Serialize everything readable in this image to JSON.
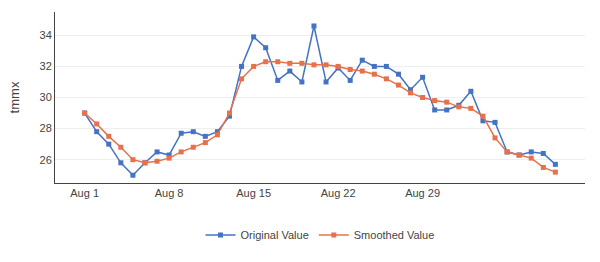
{
  "chart_data": {
    "type": "line",
    "categories": [
      "Aug 1",
      null,
      null,
      null,
      null,
      null,
      null,
      "Aug 8",
      null,
      null,
      null,
      null,
      null,
      null,
      "Aug 15",
      null,
      null,
      null,
      null,
      null,
      null,
      "Aug 22",
      null,
      null,
      null,
      null,
      null,
      null,
      "Aug 29",
      null,
      null,
      null,
      null,
      null,
      null,
      null,
      null,
      null,
      null,
      null
    ],
    "series": [
      {
        "name": "Original Value",
        "color": "#4472C4",
        "marker": "square",
        "line_style": "solid",
        "values": [
          29.0,
          27.8,
          27.0,
          25.8,
          25.0,
          25.8,
          26.5,
          26.3,
          27.7,
          27.8,
          27.5,
          27.8,
          28.8,
          32.0,
          33.9,
          33.2,
          31.1,
          31.7,
          31.0,
          34.6,
          31.0,
          31.9,
          31.1,
          32.4,
          32.0,
          32.0,
          31.5,
          30.5,
          31.3,
          29.2,
          29.2,
          29.5,
          30.4,
          28.5,
          28.4,
          26.5,
          26.3,
          26.5,
          26.4,
          25.7
        ]
      },
      {
        "name": "Smoothed Value",
        "color": "#E8704A",
        "marker": "square",
        "line_style": "solid",
        "values": [
          29.0,
          28.3,
          27.5,
          26.8,
          26.0,
          25.8,
          25.9,
          26.1,
          26.5,
          26.8,
          27.1,
          27.6,
          29.0,
          31.2,
          32.0,
          32.3,
          32.3,
          32.2,
          32.2,
          32.1,
          32.1,
          32.0,
          31.8,
          31.7,
          31.5,
          31.2,
          30.8,
          30.3,
          30.0,
          29.8,
          29.7,
          29.4,
          29.3,
          28.8,
          27.4,
          26.5,
          26.3,
          26.1,
          25.5,
          25.2
        ]
      }
    ],
    "ylabel": "tmmx",
    "ylim": [
      24.5,
      35.5
    ],
    "yticks": [
      26,
      28,
      30,
      32,
      34
    ],
    "grid": true,
    "legend": "bottom"
  }
}
